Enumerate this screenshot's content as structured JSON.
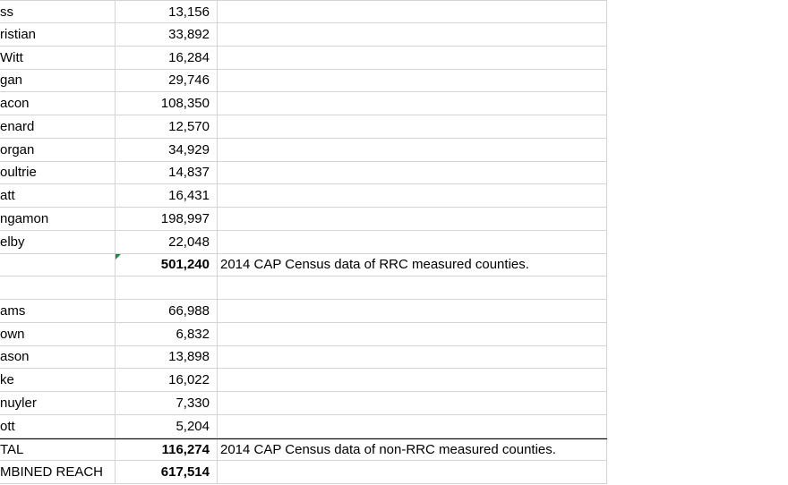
{
  "sheet": {
    "rows": [
      {
        "a": "ss",
        "b": "13,156",
        "c": ""
      },
      {
        "a": "ristian",
        "b": "33,892",
        "c": ""
      },
      {
        "a": "Witt",
        "b": "16,284",
        "c": ""
      },
      {
        "a": "gan",
        "b": "29,746",
        "c": ""
      },
      {
        "a": "acon",
        "b": "108,350",
        "c": ""
      },
      {
        "a": "enard",
        "b": "12,570",
        "c": ""
      },
      {
        "a": "organ",
        "b": "34,929",
        "c": ""
      },
      {
        "a": "oultrie",
        "b": "14,837",
        "c": ""
      },
      {
        "a": "att",
        "b": "16,431",
        "c": ""
      },
      {
        "a": "ngamon",
        "b": "198,997",
        "c": ""
      },
      {
        "a": "elby",
        "b": "22,048",
        "c": ""
      },
      {
        "a": "",
        "b": "501,240",
        "c": "2014 CAP Census data of RRC measured counties."
      },
      {
        "a": "",
        "b": "",
        "c": ""
      },
      {
        "a": "ams",
        "b": "66,988",
        "c": ""
      },
      {
        "a": "own",
        "b": "6,832",
        "c": ""
      },
      {
        "a": "ason",
        "b": "13,898",
        "c": ""
      },
      {
        "a": "ke",
        "b": "16,022",
        "c": ""
      },
      {
        "a": "nuyler",
        "b": "7,330",
        "c": ""
      },
      {
        "a": "ott",
        "b": "5,204",
        "c": ""
      },
      {
        "a": "TAL",
        "b": "116,274",
        "c": "2014 CAP Census data of non-RRC measured counties."
      },
      {
        "a": "MBINED REACH",
        "b": "617,514",
        "c": ""
      }
    ]
  },
  "colors": {
    "gridline": "#d4d4d4",
    "error_indicator": "#1e8a3c"
  }
}
